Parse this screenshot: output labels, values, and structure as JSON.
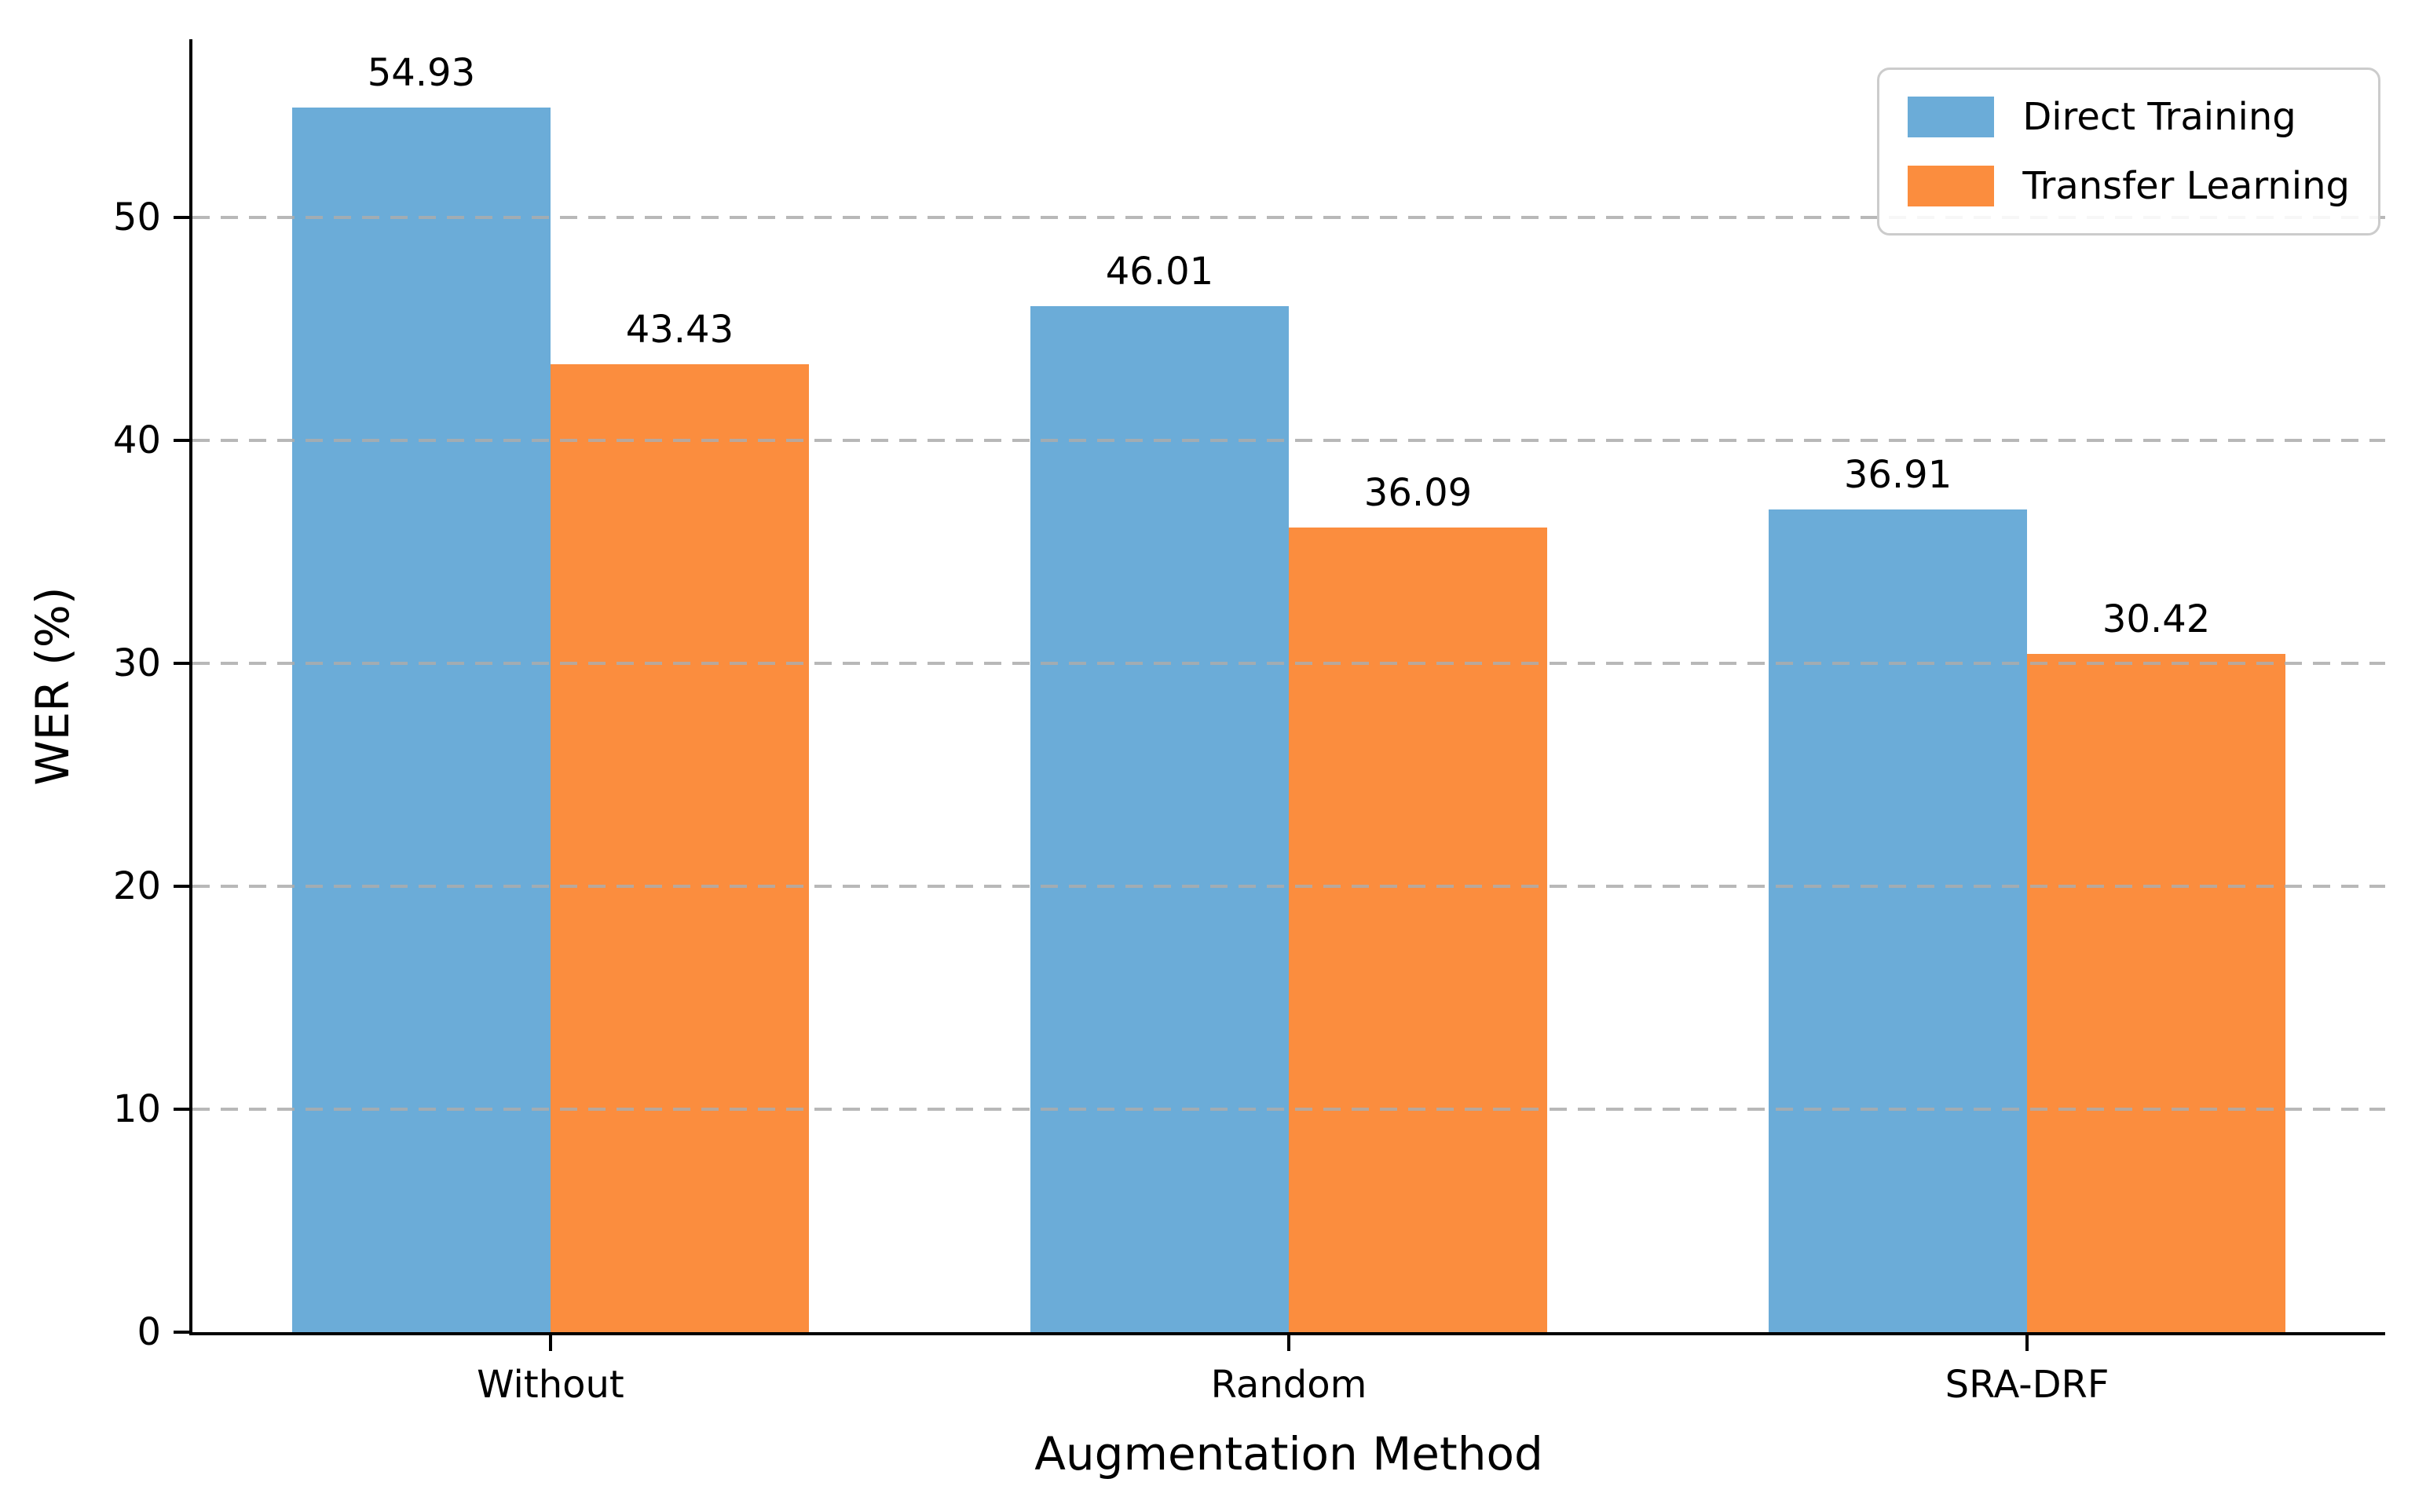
{
  "chart_data": {
    "type": "bar",
    "title": "",
    "xlabel": "Augmentation Method",
    "ylabel": "WER (%)",
    "categories": [
      "Without",
      "Random",
      "SRA-DRF"
    ],
    "series": [
      {
        "name": "Direct Training",
        "color": "#6BACD8",
        "values": [
          54.93,
          46.01,
          36.91
        ]
      },
      {
        "name": "Transfer Learning",
        "color": "#FB8D3E",
        "values": [
          43.43,
          36.09,
          30.42
        ]
      }
    ],
    "yticks": [
      0,
      10,
      20,
      30,
      40,
      50
    ],
    "ylim": [
      0,
      58
    ],
    "grid": {
      "axis": "y",
      "style": "dashed",
      "color": "#acacac",
      "over_bars": true
    },
    "legend": {
      "position": "upper right"
    },
    "bar_value_label_decimals": 2,
    "layout_hints": {
      "x_pad_units": 0.485,
      "x_span_units": 2.97,
      "bar_width_units": 0.35
    }
  }
}
